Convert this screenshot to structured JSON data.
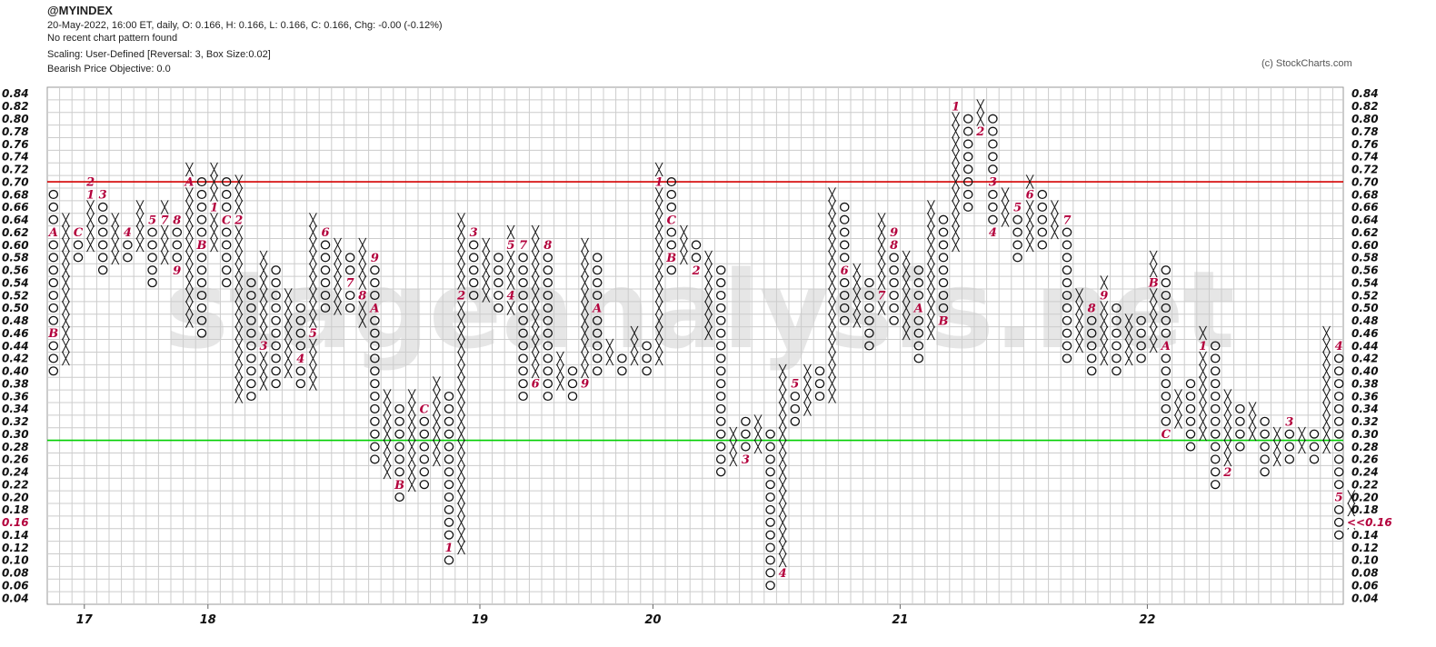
{
  "header": {
    "title": "@MYINDEX",
    "line1": "20-May-2022, 16:00 ET, daily, O: 0.166, H: 0.166, L: 0.166, C: 0.166, Chg: -0.00 (-0.12%)",
    "line2": "No recent chart pattern found",
    "line3": "Scaling: User-Defined [Reversal: 3, Box Size:0.02]",
    "line4": "Bearish Price Objective: 0.0"
  },
  "copyright": "(c) StockCharts.com",
  "watermark": "stageanalysis.net",
  "chart_data": {
    "type": "point-and-figure",
    "box_size": 0.02,
    "reversal": 3,
    "ylim": [
      0.04,
      0.84
    ],
    "y_ticks": [
      "0.84",
      "0.82",
      "0.80",
      "0.78",
      "0.76",
      "0.74",
      "0.72",
      "0.70",
      "0.68",
      "0.66",
      "0.64",
      "0.62",
      "0.60",
      "0.58",
      "0.56",
      "0.54",
      "0.52",
      "0.50",
      "0.48",
      "0.46",
      "0.44",
      "0.42",
      "0.40",
      "0.38",
      "0.36",
      "0.34",
      "0.32",
      "0.30",
      "0.28",
      "0.26",
      "0.24",
      "0.22",
      "0.20",
      "0.18",
      "0.16",
      "0.14",
      "0.12",
      "0.10",
      "0.08",
      "0.06",
      "0.04"
    ],
    "x_labels": [
      {
        "label": "17",
        "col": 3
      },
      {
        "label": "18",
        "col": 13
      },
      {
        "label": "19",
        "col": 35
      },
      {
        "label": "20",
        "col": 49
      },
      {
        "label": "21",
        "col": 69
      },
      {
        "label": "22",
        "col": 89
      }
    ],
    "last_price": {
      "label": "<<0.16",
      "value": 0.16
    },
    "left_current_label": "0.16",
    "resistance": {
      "value": 0.7,
      "color": "#d40000"
    },
    "support": {
      "value": 0.29,
      "color": "#00d000"
    },
    "colors": {
      "symbol": "#111111",
      "month_marker": "#b3003c",
      "grid": "#cccccc"
    },
    "columns": [
      {
        "type": "O",
        "high": 0.68,
        "low": 0.4,
        "markers": {
          "0.62": "A",
          "0.46": "B"
        }
      },
      {
        "type": "X",
        "high": 0.64,
        "low": 0.42
      },
      {
        "type": "O",
        "high": 0.62,
        "low": 0.58,
        "markers": {
          "0.62": "C"
        }
      },
      {
        "type": "X",
        "high": 0.7,
        "low": 0.6,
        "markers": {
          "0.70": "2",
          "0.68": "1"
        }
      },
      {
        "type": "O",
        "high": 0.68,
        "low": 0.56,
        "markers": {
          "0.68": "3"
        }
      },
      {
        "type": "X",
        "high": 0.64,
        "low": 0.58
      },
      {
        "type": "O",
        "high": 0.62,
        "low": 0.58,
        "markers": {
          "0.62": "4"
        }
      },
      {
        "type": "X",
        "high": 0.66,
        "low": 0.6
      },
      {
        "type": "O",
        "high": 0.64,
        "low": 0.54,
        "markers": {
          "0.64": "5"
        }
      },
      {
        "type": "X",
        "high": 0.66,
        "low": 0.58,
        "markers": {
          "0.64": "7",
          "0.56": "6"
        }
      },
      {
        "type": "O",
        "high": 0.64,
        "low": 0.56,
        "markers": {
          "0.64": "8",
          "0.56": "9"
        }
      },
      {
        "type": "X",
        "high": 0.72,
        "low": 0.48,
        "markers": {
          "0.70": "A"
        }
      },
      {
        "type": "O",
        "high": 0.7,
        "low": 0.46,
        "markers": {
          "0.60": "B"
        }
      },
      {
        "type": "X",
        "high": 0.72,
        "low": 0.6,
        "markers": {
          "0.66": "1"
        }
      },
      {
        "type": "O",
        "high": 0.7,
        "low": 0.54,
        "markers": {
          "0.64": "C"
        }
      },
      {
        "type": "X",
        "high": 0.7,
        "low": 0.36,
        "markers": {
          "0.64": "2"
        }
      },
      {
        "type": "O",
        "high": 0.54,
        "low": 0.36
      },
      {
        "type": "X",
        "high": 0.58,
        "low": 0.38,
        "markers": {
          "0.44": "3"
        }
      },
      {
        "type": "O",
        "high": 0.56,
        "low": 0.38
      },
      {
        "type": "X",
        "high": 0.52,
        "low": 0.4
      },
      {
        "type": "O",
        "high": 0.5,
        "low": 0.38,
        "markers": {
          "0.42": "4"
        }
      },
      {
        "type": "X",
        "high": 0.64,
        "low": 0.38,
        "markers": {
          "0.46": "5"
        }
      },
      {
        "type": "O",
        "high": 0.62,
        "low": 0.5,
        "markers": {
          "0.62": "6"
        }
      },
      {
        "type": "X",
        "high": 0.6,
        "low": 0.5
      },
      {
        "type": "O",
        "high": 0.58,
        "low": 0.5,
        "markers": {
          "0.54": "7"
        }
      },
      {
        "type": "X",
        "high": 0.6,
        "low": 0.48,
        "markers": {
          "0.52": "8"
        }
      },
      {
        "type": "O",
        "high": 0.58,
        "low": 0.26,
        "markers": {
          "0.58": "9",
          "0.50": "A"
        }
      },
      {
        "type": "X",
        "high": 0.36,
        "low": 0.24
      },
      {
        "type": "O",
        "high": 0.34,
        "low": 0.2,
        "markers": {
          "0.22": "B"
        }
      },
      {
        "type": "X",
        "high": 0.36,
        "low": 0.22
      },
      {
        "type": "O",
        "high": 0.34,
        "low": 0.22,
        "markers": {
          "0.34": "C"
        }
      },
      {
        "type": "X",
        "high": 0.38,
        "low": 0.26
      },
      {
        "type": "O",
        "high": 0.36,
        "low": 0.1,
        "markers": {
          "0.12": "1"
        }
      },
      {
        "type": "X",
        "high": 0.64,
        "low": 0.12,
        "markers": {
          "0.52": "2"
        }
      },
      {
        "type": "O",
        "high": 0.62,
        "low": 0.52,
        "markers": {
          "0.62": "3"
        }
      },
      {
        "type": "X",
        "high": 0.6,
        "low": 0.52
      },
      {
        "type": "O",
        "high": 0.58,
        "low": 0.5
      },
      {
        "type": "X",
        "high": 0.62,
        "low": 0.5,
        "markers": {
          "0.60": "5",
          "0.52": "4"
        }
      },
      {
        "type": "O",
        "high": 0.6,
        "low": 0.36,
        "markers": {
          "0.60": "7"
        }
      },
      {
        "type": "X",
        "high": 0.62,
        "low": 0.38,
        "markers": {
          "0.38": "6"
        }
      },
      {
        "type": "O",
        "high": 0.6,
        "low": 0.36,
        "markers": {
          "0.60": "8"
        }
      },
      {
        "type": "X",
        "high": 0.42,
        "low": 0.38
      },
      {
        "type": "O",
        "high": 0.4,
        "low": 0.36
      },
      {
        "type": "X",
        "high": 0.6,
        "low": 0.38,
        "markers": {
          "0.38": "9"
        }
      },
      {
        "type": "O",
        "high": 0.58,
        "low": 0.4,
        "markers": {
          "0.50": "A"
        }
      },
      {
        "type": "X",
        "high": 0.44,
        "low": 0.42
      },
      {
        "type": "O",
        "high": 0.42,
        "low": 0.4
      },
      {
        "type": "X",
        "high": 0.46,
        "low": 0.42
      },
      {
        "type": "O",
        "high": 0.44,
        "low": 0.4
      },
      {
        "type": "X",
        "high": 0.72,
        "low": 0.42,
        "markers": {
          "0.70": "1"
        }
      },
      {
        "type": "O",
        "high": 0.7,
        "low": 0.56,
        "markers": {
          "0.64": "C",
          "0.58": "B"
        }
      },
      {
        "type": "X",
        "high": 0.62,
        "low": 0.58
      },
      {
        "type": "O",
        "high": 0.6,
        "low": 0.56,
        "markers": {
          "0.56": "2"
        }
      },
      {
        "type": "X",
        "high": 0.58,
        "low": 0.46
      },
      {
        "type": "O",
        "high": 0.56,
        "low": 0.24
      },
      {
        "type": "X",
        "high": 0.3,
        "low": 0.26
      },
      {
        "type": "O",
        "high": 0.32,
        "low": 0.26,
        "markers": {
          "0.26": "3"
        }
      },
      {
        "type": "X",
        "high": 0.32,
        "low": 0.28
      },
      {
        "type": "O",
        "high": 0.3,
        "low": 0.06
      },
      {
        "type": "X",
        "high": 0.4,
        "low": 0.08,
        "markers": {
          "0.08": "4"
        }
      },
      {
        "type": "O",
        "high": 0.38,
        "low": 0.32,
        "markers": {
          "0.38": "5"
        }
      },
      {
        "type": "X",
        "high": 0.4,
        "low": 0.34
      },
      {
        "type": "O",
        "high": 0.4,
        "low": 0.36
      },
      {
        "type": "X",
        "high": 0.68,
        "low": 0.36
      },
      {
        "type": "O",
        "high": 0.66,
        "low": 0.48,
        "markers": {
          "0.56": "6"
        }
      },
      {
        "type": "X",
        "high": 0.56,
        "low": 0.48
      },
      {
        "type": "O",
        "high": 0.54,
        "low": 0.44
      },
      {
        "type": "X",
        "high": 0.64,
        "low": 0.5,
        "markers": {
          "0.52": "7"
        }
      },
      {
        "type": "O",
        "high": 0.62,
        "low": 0.48,
        "markers": {
          "0.62": "9",
          "0.60": "8"
        }
      },
      {
        "type": "X",
        "high": 0.58,
        "low": 0.46
      },
      {
        "type": "O",
        "high": 0.56,
        "low": 0.42,
        "markers": {
          "0.50": "A"
        }
      },
      {
        "type": "X",
        "high": 0.66,
        "low": 0.46
      },
      {
        "type": "O",
        "high": 0.64,
        "low": 0.48,
        "markers": {
          "0.48": "B"
        }
      },
      {
        "type": "X",
        "high": 0.82,
        "low": 0.6,
        "markers": {
          "0.82": "1"
        }
      },
      {
        "type": "O",
        "high": 0.8,
        "low": 0.66
      },
      {
        "type": "X",
        "high": 0.82,
        "low": 0.78,
        "markers": {
          "0.78": "2"
        }
      },
      {
        "type": "O",
        "high": 0.8,
        "low": 0.62,
        "markers": {
          "0.70": "3",
          "0.62": "4"
        }
      },
      {
        "type": "X",
        "high": 0.68,
        "low": 0.64
      },
      {
        "type": "O",
        "high": 0.66,
        "low": 0.58,
        "markers": {
          "0.66": "5"
        }
      },
      {
        "type": "X",
        "high": 0.7,
        "low": 0.6,
        "markers": {
          "0.68": "6"
        }
      },
      {
        "type": "O",
        "high": 0.68,
        "low": 0.6
      },
      {
        "type": "X",
        "high": 0.66,
        "low": 0.62
      },
      {
        "type": "O",
        "high": 0.64,
        "low": 0.42,
        "markers": {
          "0.64": "7"
        }
      },
      {
        "type": "X",
        "high": 0.52,
        "low": 0.44
      },
      {
        "type": "O",
        "high": 0.5,
        "low": 0.4,
        "markers": {
          "0.50": "8"
        }
      },
      {
        "type": "X",
        "high": 0.54,
        "low": 0.42,
        "markers": {
          "0.52": "9"
        }
      },
      {
        "type": "O",
        "high": 0.5,
        "low": 0.4
      },
      {
        "type": "X",
        "high": 0.48,
        "low": 0.42
      },
      {
        "type": "O",
        "high": 0.48,
        "low": 0.42
      },
      {
        "type": "X",
        "high": 0.58,
        "low": 0.44,
        "markers": {
          "0.54": "B"
        }
      },
      {
        "type": "O",
        "high": 0.56,
        "low": 0.3,
        "markers": {
          "0.44": "A",
          "0.30": "C"
        }
      },
      {
        "type": "X",
        "high": 0.36,
        "low": 0.32
      },
      {
        "type": "O",
        "high": 0.38,
        "low": 0.28
      },
      {
        "type": "X",
        "high": 0.46,
        "low": 0.3,
        "markers": {
          "0.44": "1"
        }
      },
      {
        "type": "O",
        "high": 0.44,
        "low": 0.22
      },
      {
        "type": "X",
        "high": 0.36,
        "low": 0.24,
        "markers": {
          "0.24": "2"
        }
      },
      {
        "type": "O",
        "high": 0.34,
        "low": 0.28
      },
      {
        "type": "X",
        "high": 0.34,
        "low": 0.3
      },
      {
        "type": "O",
        "high": 0.32,
        "low": 0.24
      },
      {
        "type": "X",
        "high": 0.3,
        "low": 0.26
      },
      {
        "type": "O",
        "high": 0.32,
        "low": 0.26,
        "markers": {
          "0.32": "3"
        }
      },
      {
        "type": "X",
        "high": 0.3,
        "low": 0.28
      },
      {
        "type": "O",
        "high": 0.3,
        "low": 0.26
      },
      {
        "type": "X",
        "high": 0.46,
        "low": 0.28
      },
      {
        "type": "O",
        "high": 0.44,
        "low": 0.14,
        "markers": {
          "0.44": "4",
          "0.20": "5"
        }
      },
      {
        "type": "X",
        "high": 0.2,
        "low": 0.16
      }
    ]
  }
}
